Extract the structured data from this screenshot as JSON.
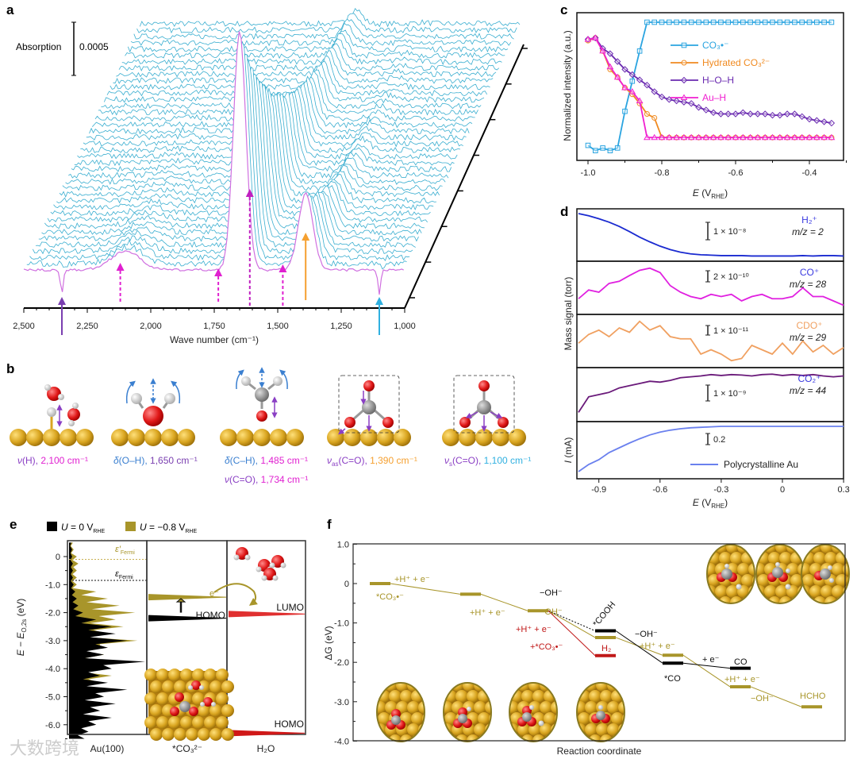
{
  "panel_labels": {
    "a": "a",
    "b": "b",
    "c": "c",
    "d": "d",
    "e": "e",
    "f": "f"
  },
  "watermark": "大数跨境",
  "panel_a": {
    "scale_label": "Absorption",
    "scale_value": "0.0005",
    "xlabel": "Wave number (cm⁻¹)"
  },
  "panel_b": {
    "modes": [
      {
        "sym": "ν",
        "sub": "",
        "rest": "(H), ",
        "value": "2,100 cm⁻¹",
        "sym_color": "#8a3fc4",
        "value_color": "#e020d0"
      },
      {
        "sym": "δ",
        "sub": "",
        "rest": "(O–H), ",
        "value": "1,650 cm⁻¹",
        "sym_color": "#3a7fd0",
        "value_color": "#7a3fb0"
      },
      {
        "sym": "δ",
        "sub": "",
        "rest": "(C–H), ",
        "value": "1,485 cm⁻¹",
        "sym_color": "#3a7fd0",
        "value_color": "#e020d0"
      },
      {
        "sym": "ν",
        "sub": "",
        "rest": "(C=O), ",
        "value": "1,734 cm⁻¹",
        "sym_color": "#8a3fc4",
        "value_color": "#e020d0"
      },
      {
        "sym": "ν",
        "sub": "as",
        "rest": "(C=O), ",
        "value": "1,390 cm⁻¹",
        "sym_color": "#8a3fc4",
        "value_color": "#f5a030"
      },
      {
        "sym": "ν",
        "sub": "s",
        "rest": "(C=O), ",
        "value": "1,100 cm⁻¹",
        "sym_color": "#8a3fc4",
        "value_color": "#30b0e0"
      }
    ]
  },
  "panel_c": {
    "ylabel": "Normalized intensity (a.u.)",
    "xlabel_main": "E",
    "xlabel_unit": " (V",
    "xlabel_sub": "RHE",
    "xlabel_close": ")"
  },
  "panel_d": {
    "ylabel_mass": "Mass signal (torr)",
    "ylabel_current_sym": "I",
    "ylabel_current_unit": " (mA)",
    "xlabel_main": "E",
    "xlabel_unit": " (V",
    "xlabel_sub": "RHE",
    "xlabel_close": ")",
    "legend": "Polycrystalline Au"
  },
  "panel_e": {
    "legend": [
      {
        "sym": "U",
        "text": " = 0 V",
        "sub": "RHE",
        "color": "#000000"
      },
      {
        "sym": "U",
        "text": " = −0.8 V",
        "sub": "RHE",
        "color": "#a8952a"
      }
    ],
    "ylabel_a": "E − E",
    "ylabel_sub": "O,2s",
    "ylabel_b": " (eV)",
    "fermi_prime": "ε′",
    "fermi": "ε",
    "fermi_sub": "Fermi",
    "electron": "e⁻",
    "homo_co3": "HOMO",
    "lumo_h2o": "LUMO",
    "homo_h2o": "HOMO",
    "columns": [
      "Au(100)",
      "*CO₃²⁻",
      "H₂O"
    ]
  },
  "panel_f": {
    "ylabel": "ΔG (eV)",
    "xlabel": "Reaction coordinate",
    "labels": {
      "h_e_1": "+H⁺ + e⁻",
      "co3": "*CO₃•⁻",
      "h_e_2": "+H⁺ + e⁻",
      "oh_black": "−OH⁻",
      "oh_gold": "−OH⁻",
      "h_e_red": "+H⁺ + e⁻",
      "co3_red": "+*CO₃•⁻",
      "cooh": "*COOH",
      "h2": "H₂",
      "oh_black_2": "−OH⁻",
      "h_e_3": "+H⁺ + e⁻",
      "co_ads": "*CO",
      "e_only": "+ e⁻",
      "co": "CO",
      "h_e_4": "+H⁺ + e⁻",
      "oh_gold_2": "−OH⁻",
      "hcho": "HCHO"
    }
  },
  "colors": {
    "cyan_trace": "#3aaed0",
    "magenta": "#e020d0",
    "gold": "#a8952a",
    "gold_atom": "#d9a520",
    "red": "#d42020",
    "co3": "#2aa4e0",
    "hydrated": "#f08a20",
    "hoh": "#6a2ab0",
    "auh": "#f020d0"
  },
  "chart_data": [
    {
      "panel": "a",
      "type": "line",
      "subtype": "waterfall",
      "xlabel": "Wave number (cm⁻¹)",
      "xlim": [
        2500,
        1000
      ],
      "xticks": [
        "2,500",
        "2,250",
        "2,000",
        "1,750",
        "1,500",
        "1,250",
        "1,000"
      ],
      "xtick_values": [
        2500,
        2250,
        2000,
        1750,
        1500,
        1250,
        1000
      ],
      "scale_bar": "0.0005",
      "n_spectra": 40,
      "peaks": [
        {
          "wavenumber": 1650,
          "relative_height": 1.0,
          "width": 35
        },
        {
          "wavenumber": 1390,
          "relative_height": 0.32,
          "width": 40
        },
        {
          "wavenumber": 2100,
          "relative_height": 0.08,
          "width": 80
        },
        {
          "wavenumber": 2350,
          "relative_height": -0.1,
          "width": 8
        },
        {
          "wavenumber": 1100,
          "relative_height": -0.1,
          "width": 8
        }
      ],
      "arrows": [
        {
          "wavenumber": 2350,
          "color": "#7a3fb0",
          "style": "solid",
          "direction": "up"
        },
        {
          "wavenumber": 2120,
          "color": "#e020d0",
          "style": "dashed",
          "direction": "up"
        },
        {
          "wavenumber": 1734,
          "color": "#e020d0",
          "style": "dashed",
          "direction": "up"
        },
        {
          "wavenumber": 1610,
          "color": "#c020c0",
          "style": "dashed",
          "direction": "up"
        },
        {
          "wavenumber": 1480,
          "color": "#e020d0",
          "style": "dashed",
          "direction": "up"
        },
        {
          "wavenumber": 1390,
          "color": "#f5a030",
          "style": "solid",
          "direction": "up"
        },
        {
          "wavenumber": 1100,
          "color": "#30b0e0",
          "style": "solid",
          "direction": "up"
        }
      ]
    },
    {
      "panel": "c",
      "type": "line",
      "xlabel": "E (VRHE)",
      "ylabel": "Normalized intensity (a.u.)",
      "xlim": [
        -1.02,
        -0.32
      ],
      "ylim": [
        0,
        1
      ],
      "xticks": [
        "-1.0",
        "-0.8",
        "-0.6",
        "-0.4"
      ],
      "xtick_values": [
        -1.0,
        -0.8,
        -0.6,
        -0.4
      ],
      "legend_position": "top-right",
      "x": [
        -1.0,
        -0.98,
        -0.96,
        -0.94,
        -0.92,
        -0.9,
        -0.88,
        -0.86,
        -0.84,
        -0.82,
        -0.8,
        -0.78,
        -0.76,
        -0.74,
        -0.72,
        -0.7,
        -0.68,
        -0.66,
        -0.64,
        -0.62,
        -0.6,
        -0.58,
        -0.56,
        -0.54,
        -0.52,
        -0.5,
        -0.48,
        -0.46,
        -0.44,
        -0.42,
        -0.4,
        -0.38,
        -0.36,
        -0.34
      ],
      "series": [
        {
          "name": "CO₃•⁻",
          "marker": "square",
          "color": "#2aa4e0",
          "values": [
            0.06,
            0.02,
            0.04,
            0.02,
            0.04,
            0.32,
            0.55,
            0.78,
            1,
            1,
            1,
            1,
            1,
            1,
            1,
            1,
            1,
            1,
            1,
            1,
            1,
            1,
            1,
            1,
            1,
            1,
            1,
            1,
            1,
            1,
            1,
            1,
            1,
            1
          ]
        },
        {
          "name": "Hydrated CO₃²⁻",
          "marker": "circle",
          "color": "#f08a20",
          "values": [
            0.86,
            0.88,
            0.78,
            0.64,
            0.58,
            0.5,
            0.45,
            0.38,
            0.3,
            0.27,
            0.12,
            0.12,
            0.12,
            0.12,
            0.12,
            0.12,
            0.12,
            0.12,
            0.12,
            0.12,
            0.12,
            0.12,
            0.12,
            0.12,
            0.12,
            0.12,
            0.12,
            0.12,
            0.12,
            0.12,
            0.12,
            0.12,
            0.12,
            0.12
          ]
        },
        {
          "name": "H–O–H",
          "marker": "diamond",
          "color": "#6a2ab0",
          "values": [
            0.87,
            0.88,
            0.8,
            0.76,
            0.7,
            0.64,
            0.6,
            0.56,
            0.52,
            0.47,
            0.43,
            0.41,
            0.4,
            0.39,
            0.38,
            0.35,
            0.33,
            0.31,
            0.3,
            0.3,
            0.3,
            0.31,
            0.3,
            0.3,
            0.3,
            0.29,
            0.29,
            0.3,
            0.3,
            0.28,
            0.26,
            0.25,
            0.24,
            0.23
          ]
        },
        {
          "name": "Au–H",
          "marker": "triangle",
          "color": "#f020d0",
          "values": [
            0.87,
            0.88,
            0.78,
            0.66,
            0.58,
            0.5,
            0.47,
            0.4,
            0.12,
            0.12,
            0.12,
            0.12,
            0.12,
            0.12,
            0.12,
            0.12,
            0.12,
            0.12,
            0.12,
            0.12,
            0.12,
            0.12,
            0.12,
            0.12,
            0.12,
            0.12,
            0.12,
            0.12,
            0.12,
            0.12,
            0.12,
            0.12,
            0.12,
            0.12
          ]
        }
      ]
    },
    {
      "panel": "d",
      "type": "line",
      "subtype": "stacked",
      "xlabel": "E (VRHE)",
      "xlim": [
        -1.0,
        0.3
      ],
      "xticks": [
        "-0.9",
        "-0.6",
        "-0.3",
        "0",
        "0.3"
      ],
      "xtick_values": [
        -0.9,
        -0.6,
        -0.3,
        0,
        0.3
      ],
      "x": [
        -1.0,
        -0.95,
        -0.9,
        -0.85,
        -0.8,
        -0.75,
        -0.7,
        -0.65,
        -0.6,
        -0.55,
        -0.5,
        -0.45,
        -0.4,
        -0.35,
        -0.3,
        -0.25,
        -0.2,
        -0.15,
        -0.1,
        -0.05,
        0,
        0.05,
        0.1,
        0.15,
        0.2,
        0.25,
        0.3
      ],
      "series": [
        {
          "name": "H₂⁺",
          "mz": "m/z = 2",
          "scale": "1 × 10⁻⁸",
          "color": "#1a2ad0",
          "label_color": "#3a3ae0",
          "values": [
            1.0,
            0.95,
            0.88,
            0.8,
            0.7,
            0.58,
            0.45,
            0.34,
            0.24,
            0.16,
            0.1,
            0.06,
            0.04,
            0.03,
            0.02,
            0.02,
            0.02,
            0.01,
            0.01,
            0.01,
            0.01,
            0.01,
            0.02,
            0.01,
            0.02,
            0.02,
            0.01
          ]
        },
        {
          "name": "CO⁺",
          "mz": "m/z = 28",
          "scale": "2 × 10⁻¹⁰",
          "color": "#e020e0",
          "label_color": "#3a3ae0",
          "values": [
            0.25,
            0.45,
            0.4,
            0.6,
            0.65,
            0.78,
            0.9,
            0.95,
            0.85,
            0.55,
            0.4,
            0.3,
            0.25,
            0.35,
            0.3,
            0.35,
            0.2,
            0.3,
            0.35,
            0.25,
            0.25,
            0.3,
            0.5,
            0.3,
            0.3,
            0.2,
            0.1
          ]
        },
        {
          "name": "CDO⁺",
          "mz": "m/z = 29",
          "scale": "1 × 10⁻¹¹",
          "color": "#f0a060",
          "label_color": "#f0a060",
          "values": [
            0.45,
            0.65,
            0.75,
            0.6,
            0.8,
            0.7,
            0.95,
            0.75,
            0.85,
            0.6,
            0.55,
            0.55,
            0.2,
            0.3,
            0.2,
            0.05,
            0.1,
            0.4,
            0.3,
            0.2,
            0.45,
            0.2,
            0.5,
            0.25,
            0.4,
            0.2,
            0.35
          ]
        },
        {
          "name": "CO₂⁺",
          "mz": "m/z = 44",
          "scale": "1 × 10⁻⁹",
          "color": "#6a1a7a",
          "label_color": "#3a3ae0",
          "values": [
            0.1,
            0.45,
            0.5,
            0.55,
            0.65,
            0.7,
            0.75,
            0.8,
            0.78,
            0.82,
            0.88,
            0.9,
            0.92,
            0.95,
            0.93,
            0.95,
            0.94,
            0.92,
            0.95,
            0.96,
            0.93,
            0.95,
            0.93,
            0.95,
            0.92,
            0.9,
            0.92
          ]
        },
        {
          "name": "Polycrystalline Au",
          "mz": "",
          "scale": "0.2",
          "color": "#6a80ee",
          "label_color": "#222222",
          "values": [
            0.05,
            0.2,
            0.3,
            0.45,
            0.55,
            0.65,
            0.74,
            0.82,
            0.88,
            0.92,
            0.95,
            0.97,
            0.98,
            0.99,
            1,
            1,
            1,
            1,
            1,
            1,
            1,
            1,
            1,
            1,
            1,
            1,
            1
          ]
        }
      ]
    },
    {
      "panel": "e",
      "type": "area",
      "ylabel": "E − E O,2s (eV)",
      "ylim": [
        -6.5,
        0.5
      ],
      "yticks": [
        "0",
        "-1.0",
        "-2.0",
        "-3.0",
        "-4.0",
        "-5.0",
        "-6.0"
      ],
      "ytick_values": [
        0,
        -1,
        -2,
        -3,
        -4,
        -5,
        -6
      ],
      "energy": [
        0.5,
        0.25,
        0,
        -0.25,
        -0.5,
        -0.75,
        -1,
        -1.25,
        -1.5,
        -1.75,
        -2,
        -2.25,
        -2.5,
        -2.75,
        -3,
        -3.25,
        -3.5,
        -3.75,
        -4,
        -4.25,
        -4.5,
        -4.75,
        -5,
        -5.25,
        -5.5,
        -5.75,
        -6,
        -6.25,
        -6.5
      ],
      "series": [
        {
          "name": "U = −0.8 VRHE",
          "color": "#a8952a",
          "values": [
            0.05,
            0.06,
            0.1,
            0.12,
            0.1,
            0.1,
            0.1,
            0.35,
            0.5,
            0.65,
            0.85,
            0.6,
            0.7,
            0.5,
            0.88,
            0.4,
            0.45,
            0.6,
            0.4,
            0.55,
            0.4,
            0.3,
            0.35,
            0.25,
            0.2,
            0.15,
            0.1,
            0.08,
            0.05
          ]
        },
        {
          "name": "U = 0 VRHE",
          "color": "#000000",
          "values": [
            0.03,
            0.04,
            0.04,
            0.05,
            0.05,
            0.05,
            0.06,
            0.08,
            0.1,
            0.12,
            0.18,
            0.35,
            0.55,
            0.6,
            0.75,
            0.5,
            0.45,
            0.98,
            0.55,
            0.4,
            0.5,
            0.75,
            0.45,
            0.6,
            0.4,
            0.55,
            0.35,
            0.25,
            0.2
          ]
        }
      ],
      "fermi_levels": {
        "fermi_prime": -0.1,
        "fermi": -0.85
      },
      "co3_levels": {
        "shifted": -1.45,
        "homo": -2.2
      },
      "h2o_levels": {
        "lumo": -2.05,
        "homo": -6.3
      }
    },
    {
      "panel": "f",
      "type": "line",
      "subtype": "energy-diagram",
      "ylabel": "ΔG (eV)",
      "xlabel": "Reaction coordinate",
      "ylim": [
        -4.0,
        1.0
      ],
      "yticks": [
        "1.0",
        "0",
        "-1.0",
        "-2.0",
        "-3.0",
        "-4.0"
      ],
      "ytick_values": [
        1,
        0,
        -1,
        -2,
        -3,
        -4
      ],
      "series": [
        {
          "name": "HCHO pathway",
          "color": "#a8952a",
          "steps": [
            0,
            1,
            2,
            3,
            4,
            5,
            6
          ],
          "values": [
            0,
            -0.27,
            -0.69,
            -1.37,
            -1.82,
            -2.62,
            -3.13
          ]
        },
        {
          "name": "CO pathway",
          "color": "#000000",
          "steps": [
            2,
            3,
            4,
            5
          ],
          "values": [
            -0.69,
            -1.2,
            -2.02,
            -2.15
          ]
        },
        {
          "name": "H2 pathway",
          "color": "#c01818",
          "steps": [
            2,
            3
          ],
          "values": [
            -0.69,
            -1.83
          ]
        }
      ]
    }
  ]
}
